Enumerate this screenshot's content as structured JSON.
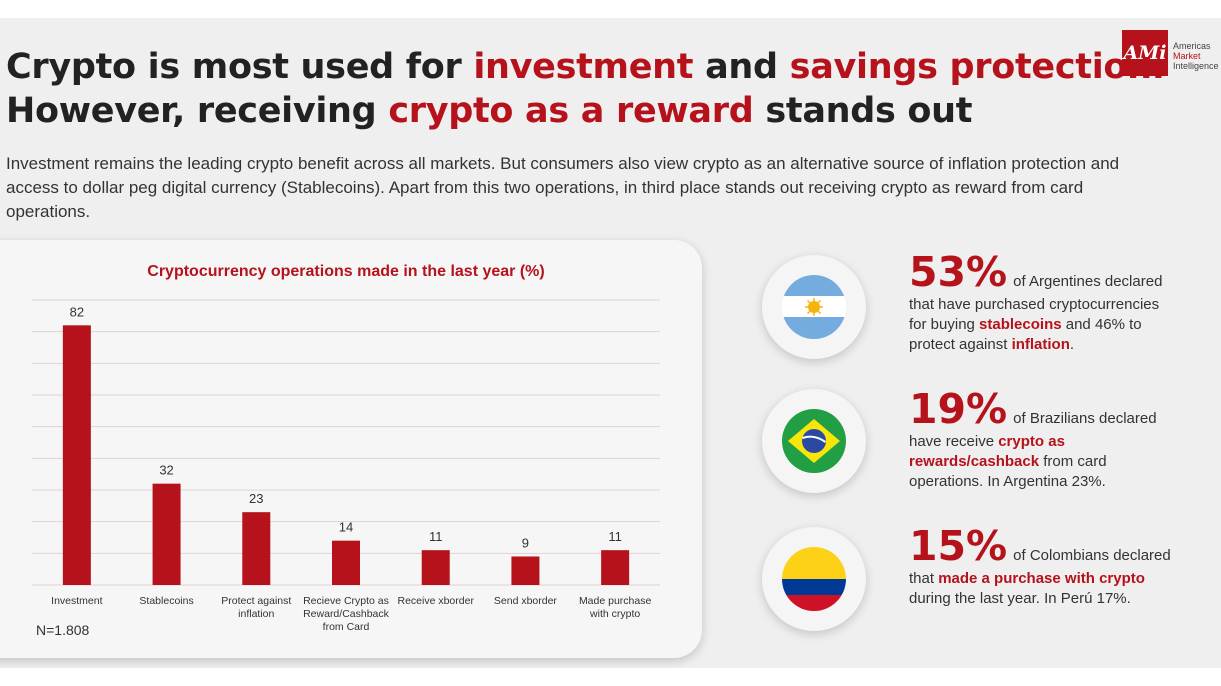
{
  "header": {
    "title_line1_a": "Crypto is most used for ",
    "title_line1_b": "investment",
    "title_line1_c": " and ",
    "title_line1_d": "savings protection.",
    "title_line2_a": "However, receiving ",
    "title_line2_b": "crypto as a reward",
    "title_line2_c": " stands out",
    "subtitle": "Investment remains the leading crypto benefit across all markets. But consumers also view crypto as an alternative source of inflation protection and access to  dollar peg digital currency (Stablecoins). Apart from this two operations, in third place stands out receiving crypto as reward from card operations."
  },
  "logo": {
    "mark": "AMi",
    "line1": "Americas",
    "line2": "Market",
    "line3": "Intelligence"
  },
  "chart_data": {
    "type": "bar",
    "title": "Cryptocurrency operations made in the last year (%)",
    "categories": [
      [
        "Investment"
      ],
      [
        "Stablecoins"
      ],
      [
        "Protect against",
        "inflation"
      ],
      [
        "Recieve Crypto as",
        "Reward/Cashback",
        "from Card"
      ],
      [
        "Receive xborder"
      ],
      [
        "Send xborder"
      ],
      [
        "Made purchase",
        "with crypto"
      ]
    ],
    "values": [
      82,
      32,
      23,
      14,
      11,
      9,
      11
    ],
    "ylim": [
      0,
      90
    ],
    "grid": true,
    "note": "N=1.808",
    "colors": {
      "bar": "#b5121b",
      "title": "#b5121b",
      "grid": "#e2d2d2"
    }
  },
  "stats": [
    {
      "flag": "argentina-flag-icon",
      "value": "53%",
      "head": "of Argentines declared",
      "lines": [
        [
          {
            "t": "that have purchased cryptocurrencies"
          }
        ],
        [
          {
            "t": "for buying "
          },
          {
            "t": "stablecoins",
            "b": true
          },
          {
            "t": " and 46% to"
          }
        ],
        [
          {
            "t": "protect against "
          },
          {
            "t": "inflation",
            "b": true
          },
          {
            "t": "."
          }
        ]
      ]
    },
    {
      "flag": "brazil-flag-icon",
      "value": "19%",
      "head": "of Brazilians declared",
      "lines": [
        [
          {
            "t": "have receive "
          },
          {
            "t": "crypto as",
            "b": true
          }
        ],
        [
          {
            "t": "rewards/cashback",
            "b": true
          },
          {
            "t": " from card"
          }
        ],
        [
          {
            "t": "operations. In Argentina 23%."
          }
        ]
      ]
    },
    {
      "flag": "colombia-flag-icon",
      "value": "15%",
      "head": "of Colombians declared",
      "lines": [
        [
          {
            "t": "that "
          },
          {
            "t": "made a purchase with crypto",
            "b": true
          }
        ],
        [
          {
            "t": "during the last year. In Perú 17%."
          }
        ]
      ]
    }
  ]
}
